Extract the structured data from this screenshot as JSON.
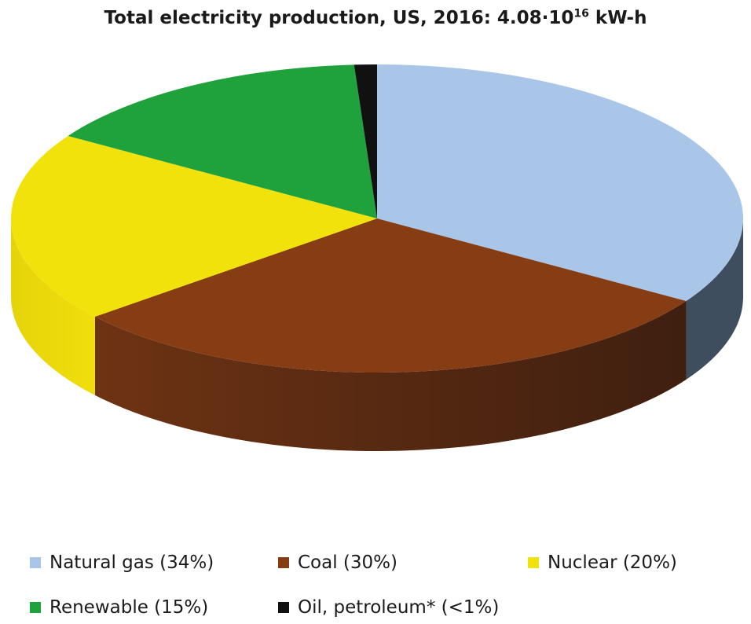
{
  "chart_data": {
    "type": "pie",
    "style": "3d",
    "title_main": "Total electricity production, US, 2016: 4.08·10",
    "title_exp": "16",
    "title_unit": " kW-h",
    "slices": [
      {
        "name": "Natural gas",
        "label": "Natural gas (34%)",
        "value": 34,
        "color": "#a9c6e8",
        "side_color": "#3f4e5e"
      },
      {
        "name": "Coal",
        "label": "Coal (30%)",
        "value": 30,
        "color": "#863d14",
        "side_color": "#4e2410"
      },
      {
        "name": "Nuclear",
        "label": "Nuclear (20%)",
        "value": 20,
        "color": "#f2e20c",
        "side_color": "#d8c80c"
      },
      {
        "name": "Renewable",
        "label": "Renewable (15%)",
        "value": 15,
        "color": "#1fa23c",
        "side_color": "#16722a"
      },
      {
        "name": "Oil, petroleum*",
        "label": "Oil, petroleum* (<1%)",
        "value": 1,
        "color": "#111111",
        "side_color": "#000000"
      }
    ],
    "legend_position": "bottom"
  }
}
